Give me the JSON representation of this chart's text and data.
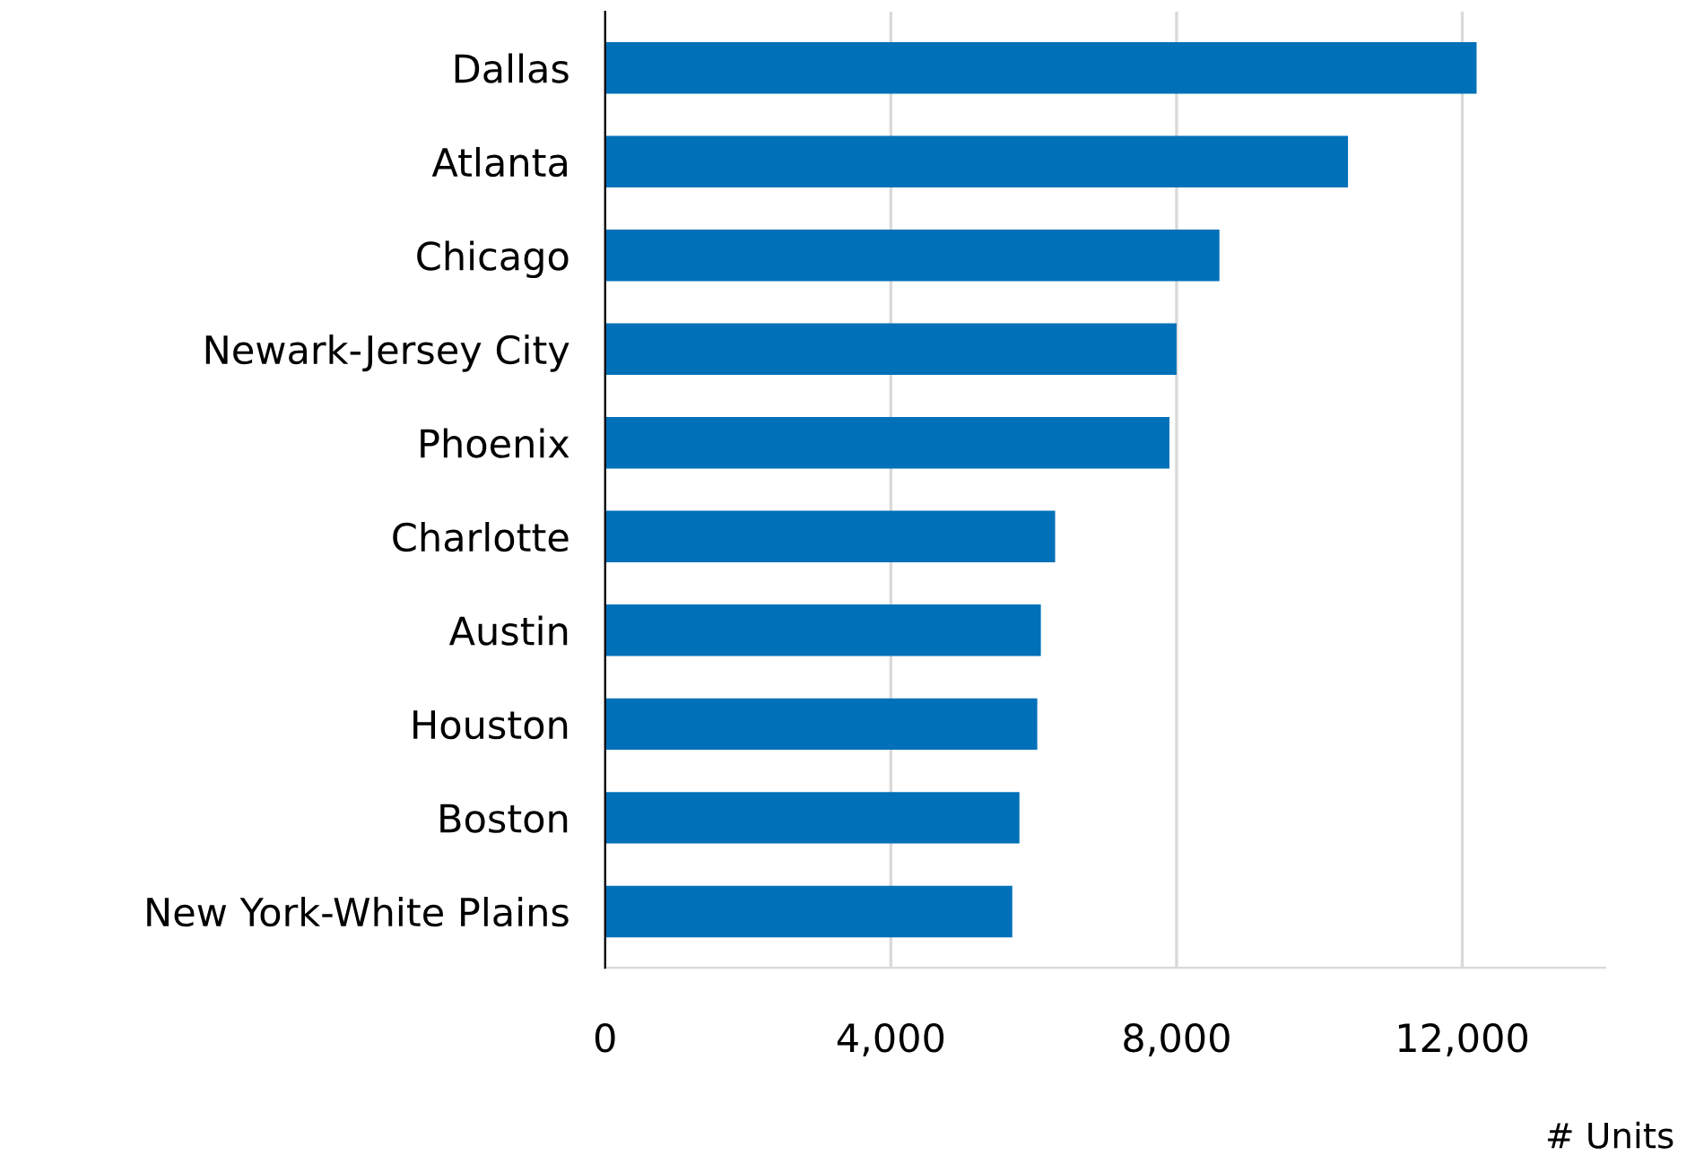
{
  "chart_data": {
    "type": "bar",
    "orientation": "horizontal",
    "xlabel": "# Units",
    "categories": [
      "Dallas",
      "Atlanta",
      "Chicago",
      "Newark-Jersey City",
      "Phoenix",
      "Charlotte",
      "Austin",
      "Houston",
      "Boston",
      "New York-White Plains"
    ],
    "values": [
      12200,
      10400,
      8600,
      8000,
      7900,
      6300,
      6100,
      6050,
      5800,
      5700
    ],
    "color": "#0070b8",
    "xlim": [
      0,
      14000
    ],
    "xticks": [
      {
        "value": 0,
        "label": "0"
      },
      {
        "value": 4000,
        "label": "4,000"
      },
      {
        "value": 8000,
        "label": "8,000"
      },
      {
        "value": 12000,
        "label": "12,000"
      }
    ],
    "grid": "x"
  }
}
